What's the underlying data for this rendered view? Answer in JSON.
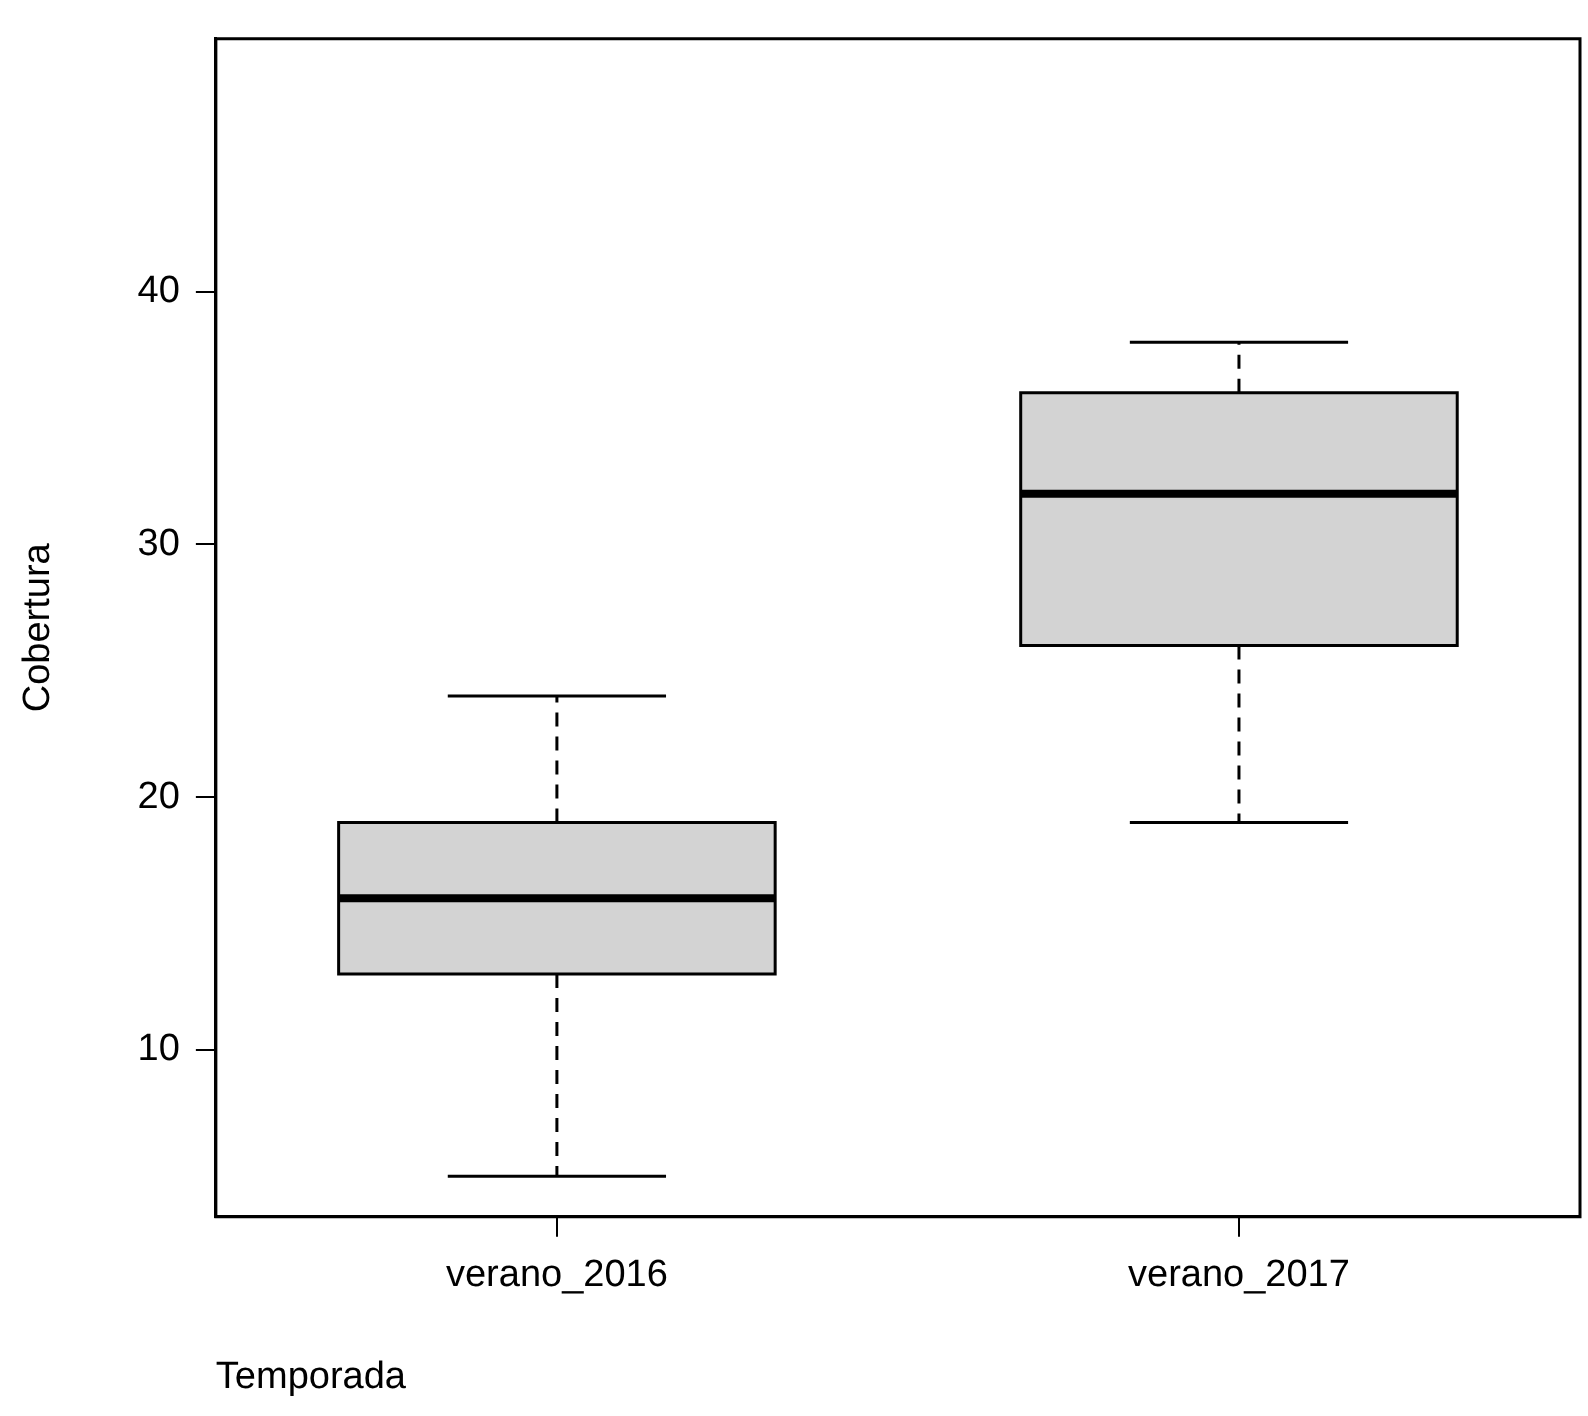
{
  "chart_data": {
    "type": "box",
    "xlabel": "Temporada",
    "ylabel": "Cobertura",
    "categories": [
      "verano_2016",
      "verano_2017"
    ],
    "boxes": [
      {
        "low": 5,
        "q1": 13,
        "median": 16,
        "q3": 19,
        "high": 24
      },
      {
        "low": 19,
        "q1": 26,
        "median": 32,
        "q3": 36,
        "high": 38
      }
    ],
    "color": "#d3d3d3",
    "ylim": [
      3.4,
      50
    ],
    "yticks": [
      10,
      20,
      30,
      40
    ],
    "grid": false,
    "legend": false
  }
}
